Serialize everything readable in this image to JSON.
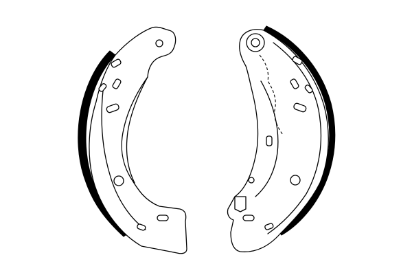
{
  "figure": {
    "subject": "brake-shoe-pair",
    "style": "line-drawing",
    "colors": {
      "stroke": "#000000",
      "lining": "#000000",
      "background": "#ffffff"
    },
    "parts": [
      {
        "id": "left-brake-shoe"
      },
      {
        "id": "right-brake-shoe"
      }
    ]
  }
}
